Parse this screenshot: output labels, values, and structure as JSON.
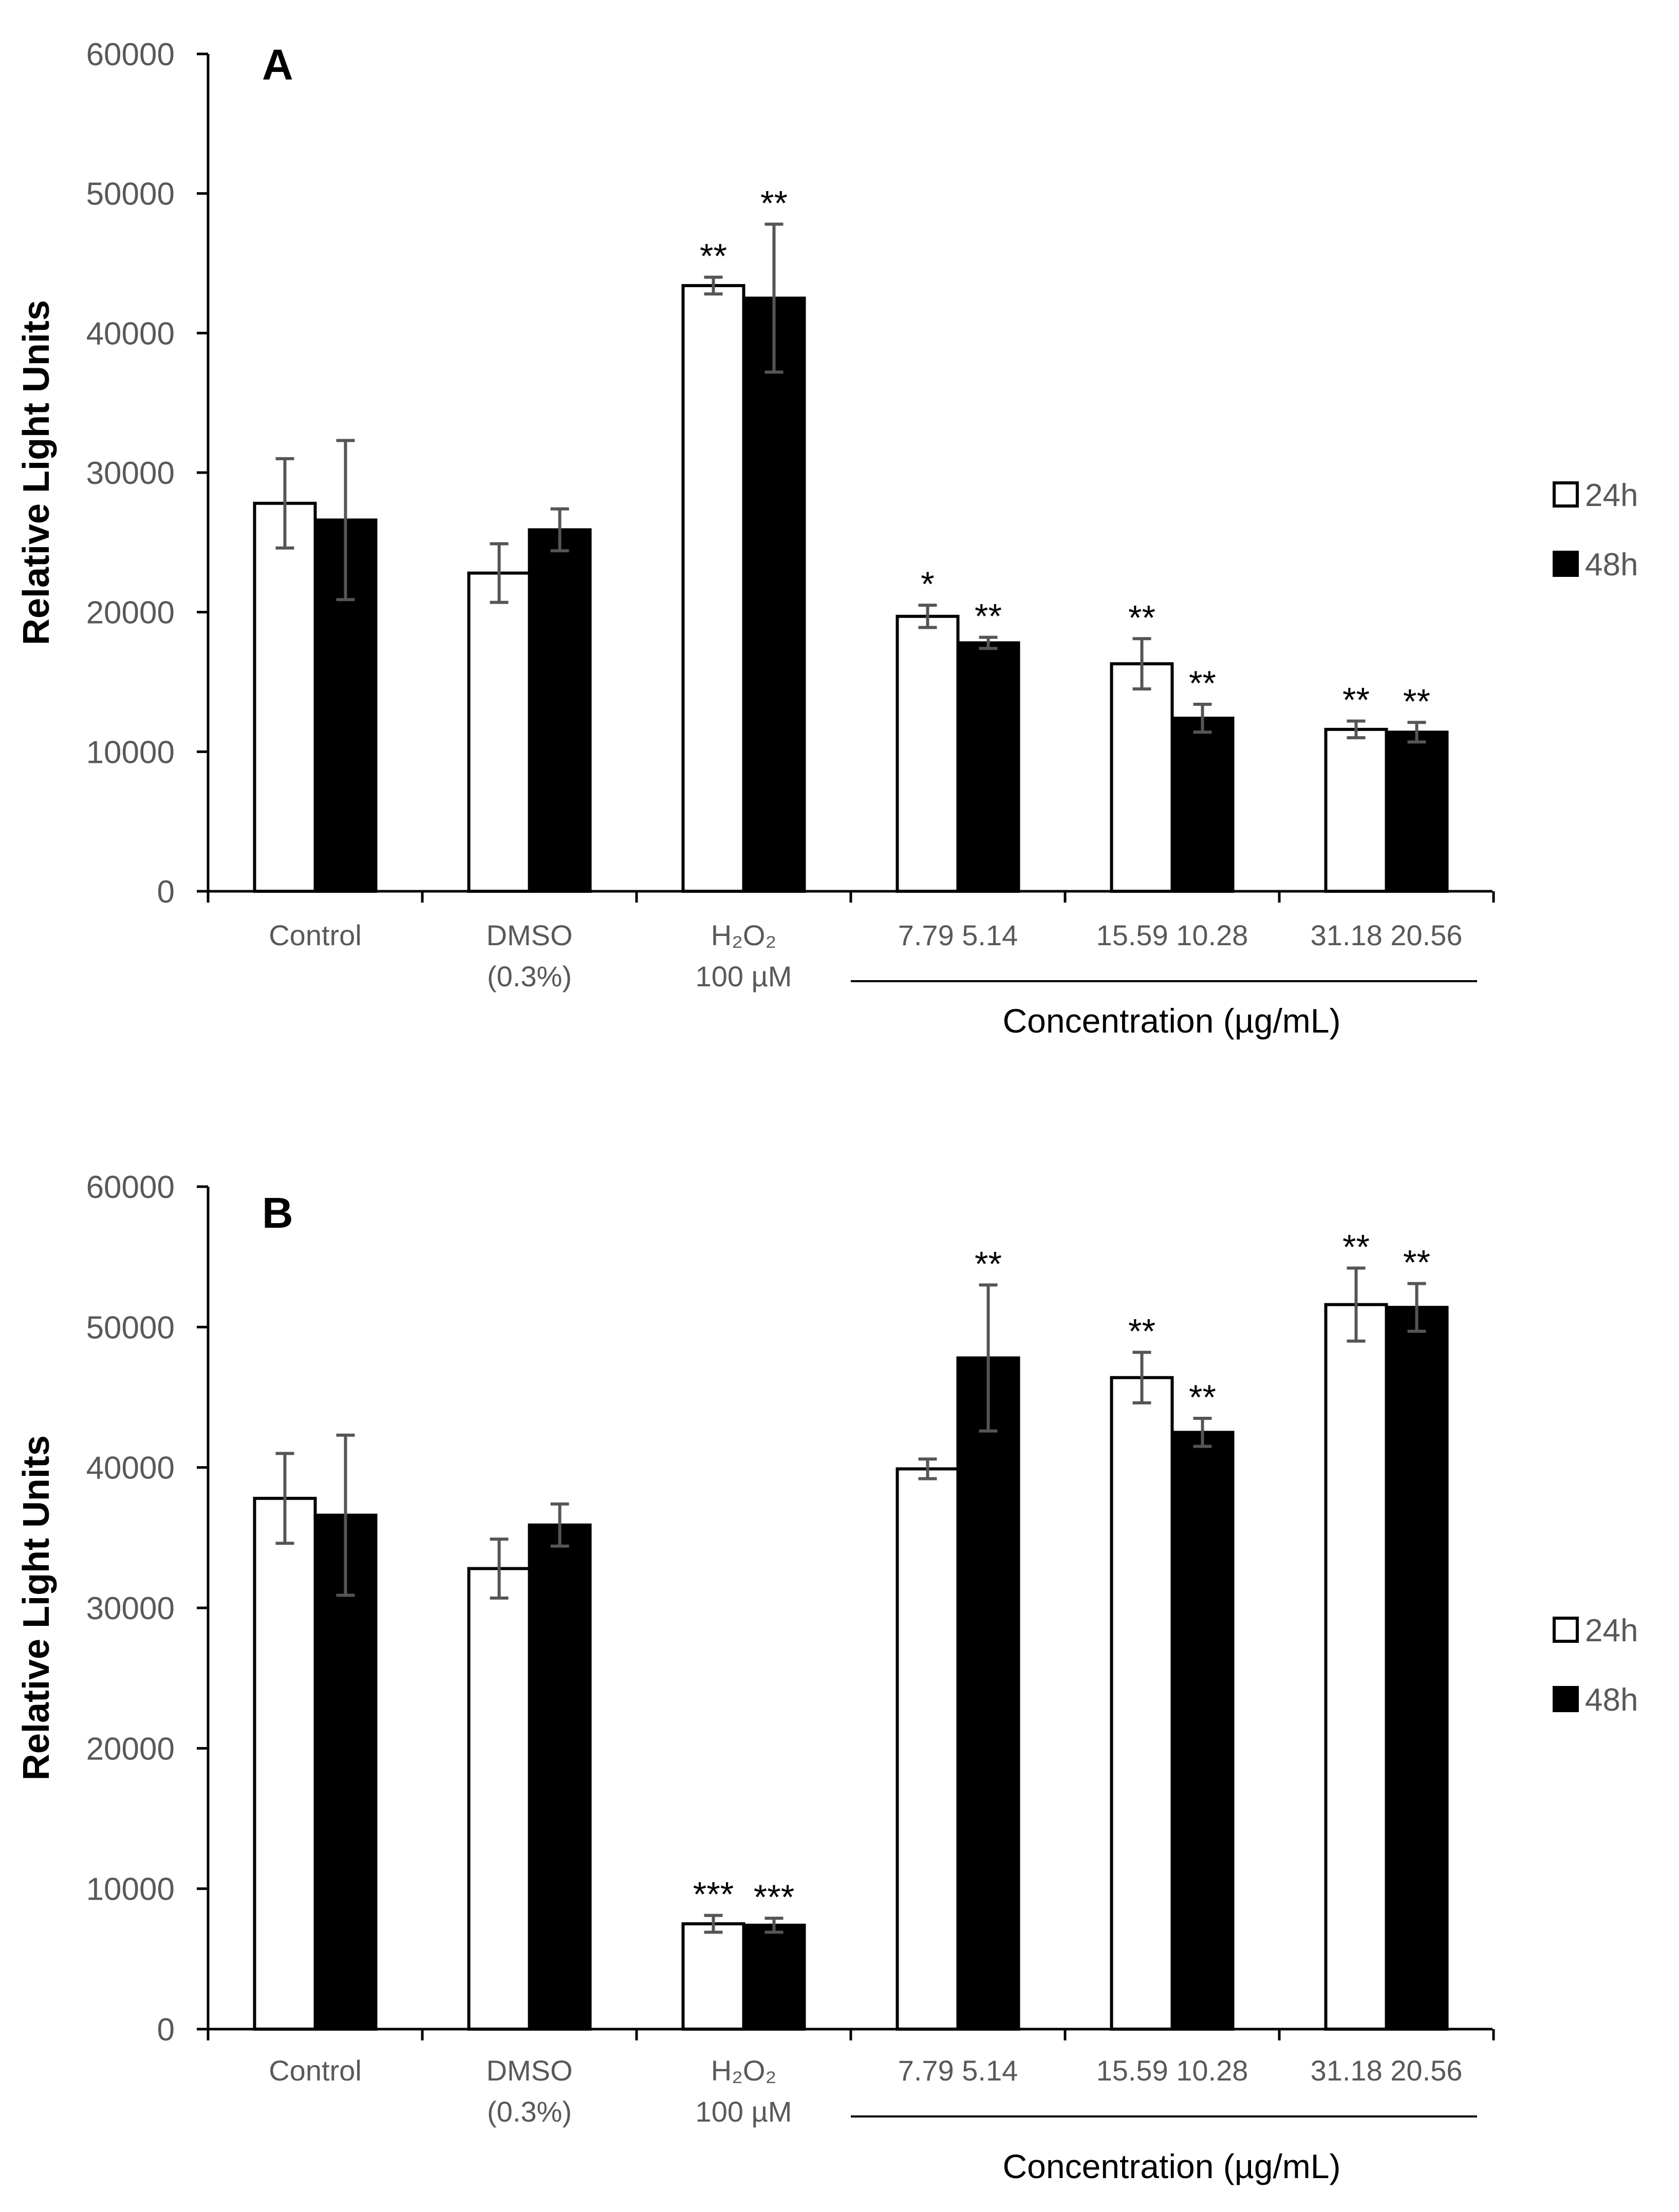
{
  "chart_data": [
    {
      "type": "bar",
      "panel_label": "A",
      "ylabel": "Relative Light Units",
      "xlabel": "Concentration (µg/mL)",
      "ylim": [
        0,
        60000
      ],
      "yticks": [
        "0",
        "10000",
        "20000",
        "30000",
        "40000",
        "50000",
        "60000"
      ],
      "categories": [
        {
          "label_lines": [
            "Control"
          ]
        },
        {
          "label_lines": [
            "DMSO",
            "(0.3%)"
          ]
        },
        {
          "label_lines": [
            "H₂O₂",
            "100 µM"
          ]
        },
        {
          "label_lines": [
            "7.79  5.14"
          ]
        },
        {
          "label_lines": [
            "15.59  10.28"
          ]
        },
        {
          "label_lines": [
            "31.18  20.56"
          ]
        }
      ],
      "series": [
        {
          "name": "24h",
          "color": "#ffffff",
          "values": [
            27800,
            22800,
            43400,
            19700,
            16300,
            11600
          ],
          "errors": [
            3200,
            2100,
            600,
            800,
            1800,
            600
          ],
          "labels": [
            "",
            "",
            "**",
            "*",
            "**",
            "**"
          ]
        },
        {
          "name": "48h",
          "color": "#000000",
          "values": [
            26600,
            25900,
            42500,
            17800,
            12400,
            11400
          ],
          "errors": [
            5700,
            1500,
            5300,
            400,
            1000,
            700
          ],
          "labels": [
            "",
            "",
            "**",
            "**",
            "**",
            "**"
          ]
        }
      ],
      "legend": "right",
      "grid": false
    },
    {
      "type": "bar",
      "panel_label": "B",
      "ylabel": "Relative Light Units",
      "xlabel": "Concentration (µg/mL)",
      "ylim": [
        0,
        60000
      ],
      "yticks": [
        "0",
        "10000",
        "20000",
        "30000",
        "40000",
        "50000",
        "60000"
      ],
      "categories": [
        {
          "label_lines": [
            "Control"
          ]
        },
        {
          "label_lines": [
            "DMSO",
            "(0.3%)"
          ]
        },
        {
          "label_lines": [
            "H₂O₂",
            "100 µM"
          ]
        },
        {
          "label_lines": [
            "7.79  5.14"
          ]
        },
        {
          "label_lines": [
            "15.59  10.28"
          ]
        },
        {
          "label_lines": [
            "31.18  20.56"
          ]
        }
      ],
      "series": [
        {
          "name": "24h",
          "color": "#ffffff",
          "values": [
            37800,
            32800,
            7500,
            39900,
            46400,
            51600
          ],
          "errors": [
            3200,
            2100,
            600,
            700,
            1800,
            2600
          ],
          "labels": [
            "",
            "",
            "***",
            "",
            "**",
            "**"
          ]
        },
        {
          "name": "48h",
          "color": "#000000",
          "values": [
            36600,
            35900,
            7400,
            47800,
            42500,
            51400
          ],
          "errors": [
            5700,
            1500,
            500,
            5200,
            1000,
            1700
          ],
          "labels": [
            "",
            "",
            "***",
            "**",
            "**",
            "**"
          ]
        }
      ],
      "legend": "right",
      "grid": false
    }
  ]
}
